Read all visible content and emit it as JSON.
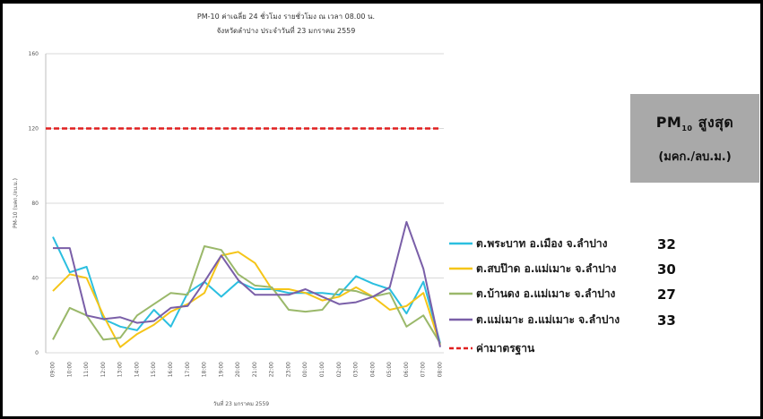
{
  "chart_data": {
    "type": "line",
    "title": "PM-10 ค่าเฉลี่ย 24 ชั่วโมง รายชั่วโมง ณ เวลา 08.00 น.",
    "subtitle": "จังหวัดลำปาง ประจำวันที่ 23 มกราคม 2559",
    "xlabel": "วันที่ 23 มกราคม 2559",
    "ylabel": "PM-10 (มคก./ลบ.ม.)",
    "ylim": [
      0,
      160
    ],
    "yticks": [
      "0",
      "40",
      "80",
      "120",
      "160"
    ],
    "categories": [
      "09:00",
      "10:00",
      "11:00",
      "12:00",
      "13:00",
      "14:00",
      "15:00",
      "16:00",
      "17:00",
      "18:00",
      "19:00",
      "20:00",
      "21:00",
      "22:00",
      "23:00",
      "00:00",
      "01:00",
      "02:00",
      "03:00",
      "04:00",
      "05:00",
      "06:00",
      "07:00",
      "08:00"
    ],
    "standard": {
      "name": "ค่ามาตรฐาน",
      "value": 120,
      "color": "#e02020"
    },
    "series": [
      {
        "name": "ต.พระบาท อ.เมือง จ.ลำปาง",
        "display_value": "32",
        "color": "#2bbfe0",
        "values": [
          62,
          43,
          46,
          18,
          14,
          12,
          23,
          14,
          32,
          38,
          30,
          38,
          34,
          34,
          32,
          32,
          32,
          31,
          41,
          37,
          34,
          21,
          38,
          5
        ]
      },
      {
        "name": "ต.สบป๊าด อ.แม่เมาะ จ.ลำปาง",
        "display_value": "30",
        "color": "#f5c518",
        "values": [
          33,
          42,
          40,
          20,
          3,
          10,
          15,
          22,
          26,
          32,
          52,
          54,
          48,
          34,
          34,
          32,
          28,
          30,
          35,
          30,
          23,
          25,
          32,
          4
        ]
      },
      {
        "name": "ต.บ้านดง อ.แม่เมาะ จ.ลำปาง",
        "display_value": "27",
        "color": "#9ab86a",
        "values": [
          7,
          24,
          20,
          7,
          8,
          20,
          26,
          32,
          31,
          57,
          55,
          42,
          36,
          35,
          23,
          22,
          23,
          34,
          33,
          30,
          32,
          14,
          20,
          5
        ]
      },
      {
        "name": "ต.แม่เมาะ อ.แม่เมาะ จ.ลำปาง",
        "display_value": "33",
        "color": "#7a5fa8",
        "values": [
          56,
          56,
          20,
          18,
          19,
          16,
          17,
          24,
          25,
          38,
          52,
          39,
          31,
          31,
          31,
          34,
          30,
          26,
          27,
          30,
          35,
          70,
          45,
          3
        ]
      }
    ]
  },
  "pm_box": {
    "line1": "PM",
    "line1_sub": "10",
    "line1_rest": "สูงสุด",
    "line2": "(มคก./ลบ.ม.)"
  }
}
